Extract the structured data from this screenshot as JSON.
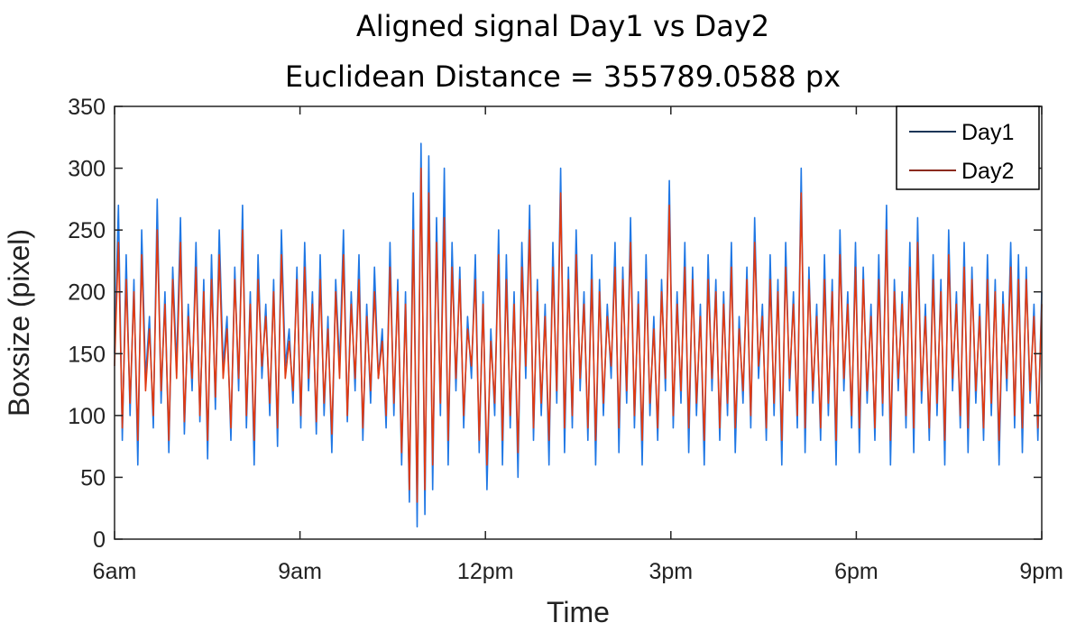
{
  "chart_data": {
    "type": "line",
    "title": "Aligned signal Day1 vs Day2",
    "subtitle": "Euclidean Distance = 355789.0588 px",
    "xlabel": "Time",
    "ylabel": "Boxsize (pixel)",
    "ylim": [
      0,
      350
    ],
    "yticks": [
      0,
      50,
      100,
      150,
      200,
      250,
      300,
      350
    ],
    "xlim": [
      "6am",
      "9pm"
    ],
    "xticks": [
      "6am",
      "9am",
      "12pm",
      "3pm",
      "6pm",
      "9pm"
    ],
    "grid": false,
    "legend_position": "top-right",
    "series": [
      {
        "name": "Day1",
        "line_color": "#1f77e4",
        "legend_color": "#1c3557",
        "values": [
          150,
          270,
          80,
          230,
          100,
          210,
          60,
          250,
          130,
          180,
          90,
          275,
          110,
          200,
          70,
          220,
          140,
          260,
          85,
          190,
          120,
          240,
          95,
          210,
          65,
          230,
          105,
          250,
          140,
          180,
          80,
          220,
          120,
          270,
          90,
          200,
          60,
          230,
          130,
          190,
          100,
          210,
          75,
          250,
          140,
          170,
          110,
          220,
          90,
          240,
          120,
          200,
          85,
          230,
          100,
          180,
          70,
          210,
          140,
          250,
          95,
          200,
          120,
          230,
          80,
          190,
          110,
          220,
          130,
          170,
          90,
          240,
          100,
          210,
          60,
          200,
          30,
          280,
          10,
          320,
          20,
          310,
          40,
          260,
          100,
          300,
          60,
          240,
          120,
          220,
          90,
          180,
          130,
          230,
          70,
          200,
          40,
          170,
          100,
          250,
          60,
          230,
          90,
          200,
          50,
          240,
          130,
          270,
          80,
          210,
          100,
          190,
          60,
          240,
          110,
          300,
          70,
          220,
          90,
          250,
          120,
          200,
          80,
          230,
          60,
          210,
          100,
          190,
          130,
          240,
          70,
          220,
          110,
          260,
          90,
          200,
          60,
          230,
          100,
          180,
          80,
          210,
          120,
          290,
          90,
          200,
          110,
          240,
          70,
          220,
          100,
          190,
          60,
          230,
          120,
          210,
          80,
          200,
          100,
          240,
          70,
          180,
          110,
          220,
          90,
          260,
          130,
          190,
          80,
          230,
          100,
          210,
          60,
          240,
          120,
          200,
          90,
          300,
          70,
          220,
          110,
          190,
          80,
          230,
          100,
          210,
          60,
          250,
          120,
          200,
          90,
          240,
          70,
          220,
          110,
          190,
          80,
          230,
          100,
          270,
          60,
          210,
          120,
          200,
          90,
          240,
          70,
          260,
          110,
          190,
          80,
          230,
          100,
          210,
          60,
          250,
          120,
          200,
          90,
          240,
          70,
          220,
          110,
          190,
          80,
          230,
          100,
          210,
          60,
          200,
          120,
          240,
          90,
          230,
          70,
          220,
          110,
          190,
          80,
          200
        ]
      },
      {
        "name": "Day2",
        "line_color": "#e03a12",
        "legend_color": "#8b2a1e",
        "values": [
          140,
          240,
          90,
          210,
          110,
          200,
          80,
          230,
          120,
          170,
          100,
          250,
          120,
          190,
          80,
          210,
          130,
          240,
          95,
          180,
          130,
          220,
          100,
          200,
          80,
          210,
          115,
          230,
          130,
          170,
          90,
          210,
          130,
          250,
          100,
          190,
          80,
          210,
          140,
          180,
          110,
          200,
          90,
          230,
          130,
          160,
          120,
          210,
          100,
          220,
          130,
          190,
          95,
          210,
          110,
          170,
          85,
          200,
          130,
          230,
          100,
          190,
          130,
          210,
          90,
          180,
          120,
          200,
          130,
          160,
          100,
          220,
          110,
          200,
          70,
          190,
          40,
          250,
          30,
          300,
          40,
          280,
          60,
          240,
          110,
          260,
          80,
          220,
          130,
          210,
          100,
          170,
          140,
          210,
          80,
          190,
          60,
          160,
          110,
          230,
          80,
          210,
          100,
          190,
          70,
          220,
          140,
          250,
          90,
          200,
          110,
          180,
          80,
          220,
          120,
          280,
          90,
          210,
          100,
          230,
          130,
          190,
          90,
          210,
          80,
          200,
          110,
          180,
          140,
          220,
          90,
          210,
          120,
          240,
          100,
          190,
          80,
          210,
          110,
          170,
          90,
          200,
          130,
          270,
          100,
          190,
          120,
          220,
          90,
          210,
          110,
          180,
          80,
          210,
          130,
          200,
          90,
          190,
          110,
          220,
          90,
          170,
          120,
          210,
          100,
          240,
          140,
          180,
          90,
          210,
          110,
          200,
          80,
          220,
          130,
          190,
          100,
          280,
          90,
          210,
          120,
          180,
          90,
          210,
          110,
          200,
          80,
          230,
          130,
          190,
          100,
          220,
          90,
          210,
          120,
          180,
          90,
          210,
          110,
          250,
          80,
          200,
          130,
          190,
          100,
          220,
          90,
          240,
          120,
          180,
          90,
          210,
          110,
          200,
          80,
          230,
          130,
          190,
          100,
          220,
          90,
          210,
          120,
          180,
          90,
          210,
          110,
          200,
          80,
          190,
          130,
          220,
          100,
          210,
          90,
          210,
          120,
          180,
          90,
          190
        ]
      }
    ]
  }
}
